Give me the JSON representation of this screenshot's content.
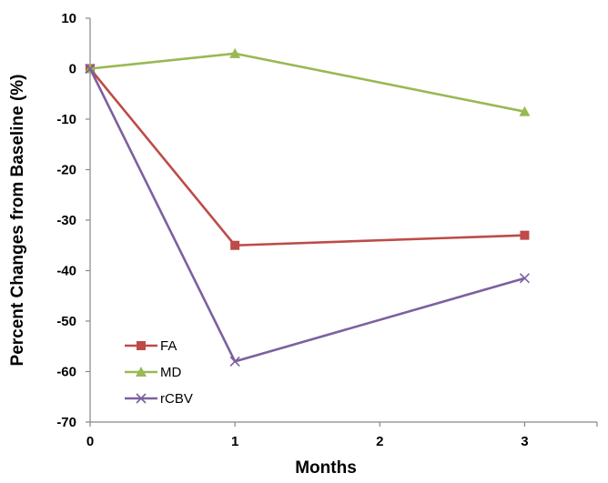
{
  "chart_data": {
    "type": "line",
    "xlabel": "Months",
    "ylabel": "Percent Changes from Baseline (%)",
    "x_ticks": [
      0,
      1,
      2,
      3
    ],
    "y_ticks": [
      10,
      0,
      -10,
      -20,
      -30,
      -40,
      -50,
      -60,
      -70
    ],
    "xlim": [
      0,
      3.5
    ],
    "ylim": [
      -70,
      10
    ],
    "grid": false,
    "legend_position": "bottom-left",
    "series": [
      {
        "name": "FA",
        "color": "#be4b48",
        "marker": "square",
        "x": [
          0,
          1,
          3
        ],
        "y": [
          0,
          -35,
          -33
        ]
      },
      {
        "name": "MD",
        "color": "#98b954",
        "marker": "triangle",
        "x": [
          0,
          1,
          3
        ],
        "y": [
          0,
          3,
          -8.5
        ]
      },
      {
        "name": "rCBV",
        "color": "#7d60a0",
        "marker": "x",
        "x": [
          0,
          1,
          3
        ],
        "y": [
          0,
          -58,
          -41.5
        ]
      }
    ]
  }
}
